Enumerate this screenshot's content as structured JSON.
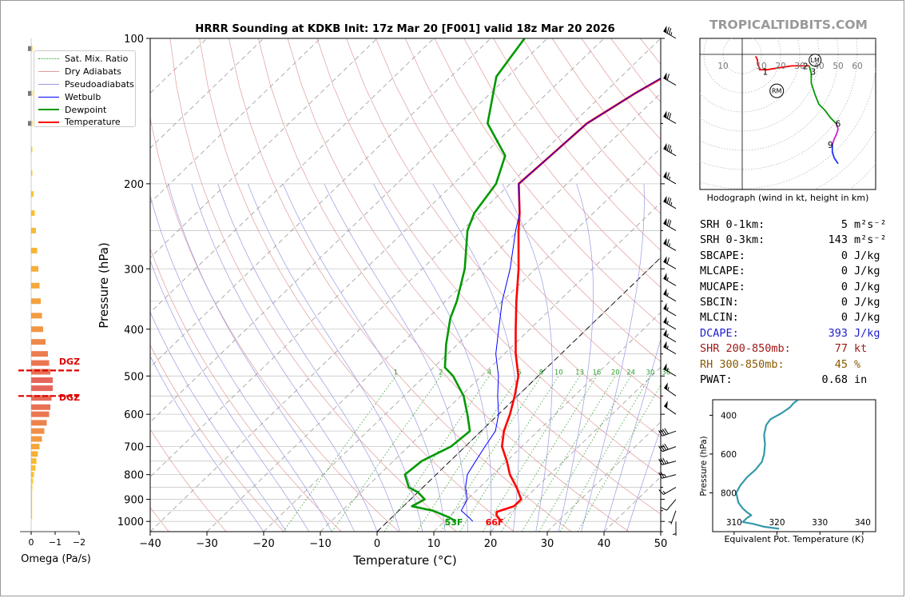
{
  "title": "HRRR Sounding at KDKB Init: 17z Mar 20 [F001] valid 18z Mar 20 2026",
  "watermark": "TROPICALTIDBITS.COM",
  "legend": [
    {
      "label": "Sat. Mix. Ratio",
      "color": "#2ca02c",
      "style": "dotted"
    },
    {
      "label": "Dry Adiabats",
      "color": "#e39a9a",
      "style": "solid"
    },
    {
      "label": "Pseudoadiabats",
      "color": "#9a9ae3",
      "style": "solid"
    },
    {
      "label": "Wetbulb",
      "color": "#0000ff",
      "style": "solid"
    },
    {
      "label": "Dewpoint",
      "color": "#009900",
      "style": "solid"
    },
    {
      "label": "Temperature",
      "color": "#ff0000",
      "style": "solid"
    }
  ],
  "stats": [
    {
      "label": "SRH 0-1km:",
      "value": "5",
      "unit": "m²s⁻²",
      "color": "#000000"
    },
    {
      "label": "SRH 0-3km:",
      "value": "143",
      "unit": "m²s⁻²",
      "color": "#000000"
    },
    {
      "label": "SBCAPE:",
      "value": "0",
      "unit": "J/kg",
      "color": "#000000"
    },
    {
      "label": "MLCAPE:",
      "value": "0",
      "unit": "J/kg",
      "color": "#000000"
    },
    {
      "label": "MUCAPE:",
      "value": "0",
      "unit": "J/kg",
      "color": "#000000"
    },
    {
      "label": "SBCIN:",
      "value": "0",
      "unit": "J/kg",
      "color": "#000000"
    },
    {
      "label": "MLCIN:",
      "value": "0",
      "unit": "J/kg",
      "color": "#000000"
    },
    {
      "label": "DCAPE:",
      "value": "393",
      "unit": "J/kg",
      "color": "#2020d0"
    },
    {
      "label": "SHR 200-850mb:",
      "value": "77",
      "unit": "kt",
      "color": "#a01818"
    },
    {
      "label": "RH 300-850mb:",
      "value": "45",
      "unit": "%",
      "color": "#8a5a00"
    },
    {
      "label": "PWAT:",
      "value": "0.68",
      "unit": "in",
      "color": "#000000"
    }
  ],
  "chart_data": [
    {
      "type": "line",
      "subtype": "skew-t",
      "title": "HRRR Sounding at KDKB Init: 17z Mar 20 [F001] valid 18z Mar 20 2026",
      "xlabel": "Temperature (°C)",
      "ylabel": "Pressure (hPa)",
      "xlim": [
        -40,
        50
      ],
      "ylim": [
        1050,
        100
      ],
      "xticks": [
        -40,
        -30,
        -20,
        -10,
        0,
        10,
        20,
        30,
        40,
        50
      ],
      "yticks": [
        100,
        200,
        300,
        400,
        500,
        600,
        700,
        800,
        900,
        1000
      ],
      "y_scale": "log",
      "mixing_ratio_labels": [
        1,
        2,
        4,
        6,
        8,
        10,
        13,
        16,
        20,
        24,
        30,
        36
      ],
      "surface_temperature_label": "66F",
      "surface_dewpoint_label": "53F",
      "dgz_label": "DGZ",
      "series": [
        {
          "name": "Temperature",
          "color": "#ff0000",
          "points": [
            [
              1000,
              20.0
            ],
            [
              970,
              18.0
            ],
            [
              955,
              17.5
            ],
            [
              930,
              19.5
            ],
            [
              900,
              19.5
            ],
            [
              850,
              16.5
            ],
            [
              800,
              13.0
            ],
            [
              750,
              10.0
            ],
            [
              700,
              6.5
            ],
            [
              650,
              4.0
            ],
            [
              600,
              2.0
            ],
            [
              550,
              -0.5
            ],
            [
              500,
              -3.5
            ],
            [
              450,
              -8.0
            ],
            [
              400,
              -12.5
            ],
            [
              350,
              -17.5
            ],
            [
              300,
              -23.0
            ],
            [
              250,
              -30.0
            ],
            [
              230,
              -33.0
            ],
            [
              200,
              -38.5
            ],
            [
              175,
              -38.0
            ],
            [
              150,
              -37.5
            ],
            [
              130,
              -34.5
            ],
            [
              110,
              -30.0
            ],
            [
              100,
              -27.0
            ]
          ]
        },
        {
          "name": "Dewpoint",
          "color": "#009900",
          "points": [
            [
              1000,
              12.0
            ],
            [
              980,
              10.0
            ],
            [
              950,
              6.0
            ],
            [
              930,
              1.5
            ],
            [
              900,
              2.5
            ],
            [
              870,
              0.0
            ],
            [
              850,
              -2.5
            ],
            [
              800,
              -5.5
            ],
            [
              750,
              -5.0
            ],
            [
              700,
              -2.5
            ],
            [
              650,
              -2.0
            ],
            [
              600,
              -5.5
            ],
            [
              550,
              -9.5
            ],
            [
              500,
              -15.0
            ],
            [
              480,
              -18.0
            ],
            [
              430,
              -22.0
            ],
            [
              380,
              -26.0
            ],
            [
              350,
              -28.0
            ],
            [
              300,
              -32.5
            ],
            [
              250,
              -39.0
            ],
            [
              230,
              -41.0
            ],
            [
              200,
              -42.5
            ],
            [
              175,
              -46.0
            ],
            [
              150,
              -55.0
            ],
            [
              120,
              -62.0
            ],
            [
              100,
              -64.0
            ]
          ]
        },
        {
          "name": "Wetbulb",
          "color": "#0000ff",
          "points": [
            [
              1000,
              15.0
            ],
            [
              980,
              13.5
            ],
            [
              950,
              11.0
            ],
            [
              900,
              10.0
            ],
            [
              850,
              7.5
            ],
            [
              800,
              5.5
            ],
            [
              750,
              4.5
            ],
            [
              700,
              3.5
            ],
            [
              650,
              2.5
            ],
            [
              600,
              0.0
            ],
            [
              550,
              -3.5
            ],
            [
              500,
              -7.0
            ],
            [
              450,
              -11.5
            ],
            [
              400,
              -15.5
            ],
            [
              350,
              -20.0
            ],
            [
              300,
              -24.5
            ],
            [
              250,
              -30.5
            ],
            [
              230,
              -33.0
            ],
            [
              200,
              -38.5
            ],
            [
              175,
              -38.0
            ],
            [
              150,
              -37.5
            ],
            [
              130,
              -34.5
            ],
            [
              110,
              -30.5
            ],
            [
              100,
              -28.0
            ]
          ]
        }
      ]
    },
    {
      "type": "line",
      "subtype": "hodograph",
      "title": "Hodograph (wind in kt, height in km)",
      "ring_labels": [
        10,
        20,
        30,
        40,
        50,
        60
      ],
      "markers": [
        "LM",
        "RM"
      ],
      "height_labels": [
        "1",
        "2",
        "3",
        "6",
        "9"
      ],
      "segments": [
        {
          "color": "#ff0000",
          "points": [
            [
              7,
              -1
            ],
            [
              8,
              -3
            ],
            [
              8,
              -5
            ],
            [
              9,
              -7
            ],
            [
              9,
              -8
            ],
            [
              13,
              -8
            ],
            [
              19,
              -7
            ],
            [
              26,
              -6
            ],
            [
              31,
              -6
            ],
            [
              35,
              -6
            ]
          ]
        },
        {
          "color": "#009900",
          "points": [
            [
              35,
              -6
            ],
            [
              36,
              -10
            ],
            [
              36,
              -15
            ],
            [
              38,
              -21
            ],
            [
              40,
              -26
            ],
            [
              43,
              -29
            ],
            [
              46,
              -33
            ],
            [
              49,
              -36
            ]
          ]
        },
        {
          "color": "#cc22cc",
          "points": [
            [
              49,
              -36
            ],
            [
              50,
              -39
            ],
            [
              49,
              -42
            ],
            [
              48,
              -44
            ],
            [
              47,
              -47
            ]
          ]
        },
        {
          "color": "#2233ff",
          "points": [
            [
              47,
              -47
            ],
            [
              47,
              -51
            ],
            [
              48,
              -54
            ],
            [
              50,
              -57
            ]
          ]
        }
      ],
      "lm": [
        38,
        -3
      ],
      "rm": [
        18,
        -19
      ]
    },
    {
      "type": "line",
      "subtype": "theta-e",
      "xlabel": "Equivalent Pot. Temperature (K)",
      "ylabel": "Pressure (hPa)",
      "xlim": [
        305,
        343
      ],
      "ylim": [
        1000,
        320
      ],
      "xticks": [
        310,
        320,
        330,
        340
      ],
      "yticks": [
        400,
        600,
        800
      ],
      "color": "#3399aa",
      "points": [
        [
          985,
          320.5
        ],
        [
          975,
          317
        ],
        [
          960,
          314.5
        ],
        [
          950,
          312
        ],
        [
          930,
          313
        ],
        [
          915,
          314
        ],
        [
          900,
          313
        ],
        [
          880,
          312
        ],
        [
          850,
          311
        ],
        [
          800,
          310.5
        ],
        [
          760,
          311.5
        ],
        [
          720,
          313
        ],
        [
          680,
          315
        ],
        [
          640,
          316.5
        ],
        [
          600,
          317
        ],
        [
          550,
          317.2
        ],
        [
          500,
          317
        ],
        [
          450,
          317.5
        ],
        [
          420,
          318.5
        ],
        [
          390,
          321
        ],
        [
          360,
          323
        ],
        [
          335,
          324
        ],
        [
          320,
          325
        ]
      ]
    },
    {
      "type": "bar",
      "subtype": "omega",
      "xlabel": "Omega (Pa/s)",
      "xticks": [
        0,
        -1,
        -2
      ],
      "xlim": [
        0.2,
        -2.3
      ],
      "bars": [
        [
          105,
          -0.05
        ],
        [
          130,
          -0.05
        ],
        [
          150,
          -0.05
        ],
        [
          170,
          -0.05
        ],
        [
          190,
          -0.05
        ],
        [
          210,
          -0.1
        ],
        [
          230,
          -0.15
        ],
        [
          250,
          -0.2
        ],
        [
          275,
          -0.25
        ],
        [
          300,
          -0.3
        ],
        [
          325,
          -0.35
        ],
        [
          350,
          -0.4
        ],
        [
          375,
          -0.45
        ],
        [
          400,
          -0.5
        ],
        [
          425,
          -0.6
        ],
        [
          450,
          -0.7
        ],
        [
          470,
          -0.75
        ],
        [
          490,
          -0.8
        ],
        [
          510,
          -0.9
        ],
        [
          530,
          -0.9
        ],
        [
          555,
          -0.85
        ],
        [
          580,
          -0.8
        ],
        [
          600,
          -0.75
        ],
        [
          625,
          -0.65
        ],
        [
          650,
          -0.55
        ],
        [
          675,
          -0.45
        ],
        [
          700,
          -0.35
        ],
        [
          725,
          -0.28
        ],
        [
          750,
          -0.22
        ],
        [
          775,
          -0.18
        ],
        [
          800,
          -0.12
        ],
        [
          825,
          -0.08
        ],
        [
          850,
          -0.05
        ],
        [
          875,
          -0.04
        ],
        [
          900,
          -0.03
        ],
        [
          925,
          -0.02
        ],
        [
          950,
          -0.02
        ],
        [
          975,
          -0.01
        ]
      ],
      "grey_marks": [
        105,
        130,
        150
      ],
      "dgz_pressures": [
        487,
        550
      ]
    }
  ],
  "wind_barbs": [
    {
      "p": 100,
      "dir": 300,
      "kt": 75
    },
    {
      "p": 125,
      "dir": 300,
      "kt": 60
    },
    {
      "p": 150,
      "dir": 300,
      "kt": 70
    },
    {
      "p": 175,
      "dir": 300,
      "kt": 75
    },
    {
      "p": 200,
      "dir": 300,
      "kt": 65
    },
    {
      "p": 225,
      "dir": 300,
      "kt": 75
    },
    {
      "p": 250,
      "dir": 300,
      "kt": 70
    },
    {
      "p": 275,
      "dir": 300,
      "kt": 65
    },
    {
      "p": 300,
      "dir": 300,
      "kt": 60
    },
    {
      "p": 325,
      "dir": 300,
      "kt": 55
    },
    {
      "p": 350,
      "dir": 300,
      "kt": 55
    },
    {
      "p": 375,
      "dir": 300,
      "kt": 55
    },
    {
      "p": 400,
      "dir": 300,
      "kt": 55
    },
    {
      "p": 425,
      "dir": 300,
      "kt": 55
    },
    {
      "p": 450,
      "dir": 300,
      "kt": 55
    },
    {
      "p": 500,
      "dir": 300,
      "kt": 55
    },
    {
      "p": 550,
      "dir": 305,
      "kt": 55
    },
    {
      "p": 600,
      "dir": 305,
      "kt": 50
    },
    {
      "p": 650,
      "dir": 250,
      "kt": 40
    },
    {
      "p": 700,
      "dir": 250,
      "kt": 40
    },
    {
      "p": 750,
      "dir": 255,
      "kt": 35
    },
    {
      "p": 800,
      "dir": 255,
      "kt": 25
    },
    {
      "p": 850,
      "dir": 240,
      "kt": 15
    },
    {
      "p": 900,
      "dir": 220,
      "kt": 10
    },
    {
      "p": 950,
      "dir": 200,
      "kt": 5
    },
    {
      "p": 1000,
      "dir": 180,
      "kt": 5
    }
  ]
}
